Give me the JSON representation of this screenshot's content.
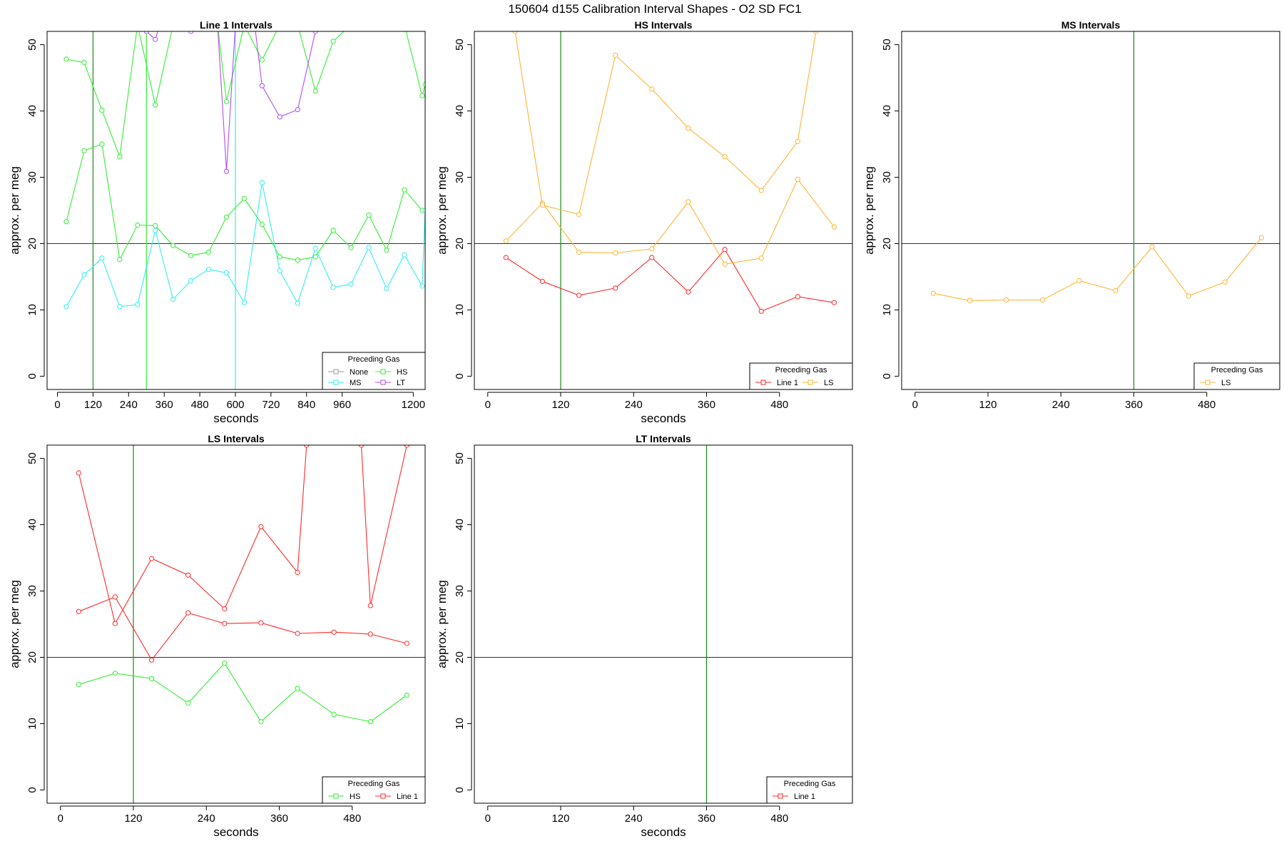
{
  "title": "150604   d155   Calibration Interval Shapes - O2 SD FC1",
  "colors": {
    "None": "#999999",
    "Line 1": "#ff2a2a",
    "HS": "#33ee33",
    "MS": "#33eeee",
    "LS": "#ffb533",
    "LT": "#b44dee",
    "reference_h": "#333333",
    "reference_v": "#1a8a1a"
  },
  "chart_data": [
    {
      "type": "line",
      "title": "Line 1 Intervals",
      "xlabel": "seconds",
      "ylabel": "approx. per meg",
      "xlim": [
        -35,
        1240
      ],
      "ylim": [
        -2,
        52
      ],
      "xticks": [
        0,
        120,
        240,
        360,
        480,
        600,
        720,
        840,
        960,
        1200
      ],
      "yticks": [
        0,
        10,
        20,
        30,
        40,
        50
      ],
      "hline": 20,
      "vlines": [
        {
          "x": 120,
          "color": "#1a8a1a"
        },
        {
          "x": 300,
          "color": "#33ee33"
        },
        {
          "x": 600,
          "color": "#33eeee"
        }
      ],
      "legend": {
        "title": "Preceding Gas",
        "position": "bottom-right",
        "columns": 2,
        "entries": [
          "None",
          "HS",
          "MS",
          "LT"
        ]
      },
      "series": [
        {
          "name": "HS",
          "x": [
            30,
            90,
            150,
            210,
            270,
            330,
            390
          ],
          "y": [
            47.8,
            47.3,
            40.1,
            33.1,
            53,
            40.9,
            53
          ]
        },
        {
          "name": "HS",
          "x": [
            30,
            90,
            150,
            210,
            270,
            330,
            390,
            450,
            510,
            570,
            630,
            690,
            750,
            810,
            870,
            930,
            990,
            1050,
            1110,
            1170,
            1230
          ],
          "y": [
            23.3,
            34,
            35,
            17.6,
            22.8,
            22.7,
            19.7,
            18.2,
            18.7,
            24,
            26.8,
            22.9,
            18,
            17.5,
            18,
            22,
            19.4,
            24.3,
            19,
            28.1,
            25
          ]
        },
        {
          "name": "HS",
          "x": [
            540,
            570,
            630,
            690,
            750,
            810,
            870,
            930,
            990,
            1050,
            1110,
            1170,
            1230,
            1240
          ],
          "y": [
            53,
            41.4,
            53,
            47.7,
            53,
            53,
            43,
            50.5,
            53,
            53,
            53,
            53,
            42.3,
            44
          ]
        },
        {
          "name": "MS",
          "x": [
            30,
            90,
            150,
            210,
            270,
            330,
            390,
            450,
            510,
            570,
            630,
            690,
            750,
            810,
            870,
            930,
            990,
            1050,
            1110,
            1170,
            1230,
            1240
          ],
          "y": [
            10.5,
            15.3,
            17.8,
            10.5,
            10.8,
            22,
            11.6,
            14.4,
            16.1,
            15.6,
            11.1,
            29.2,
            15.9,
            11,
            19.3,
            13.4,
            13.9,
            19.4,
            13.2,
            18.3,
            13.6,
            25
          ]
        },
        {
          "name": "LT",
          "x": [
            300,
            330,
            345
          ],
          "y": [
            52,
            50.8,
            53
          ]
        },
        {
          "name": "LT",
          "x": [
            450,
            470
          ],
          "y": [
            52,
            53
          ]
        },
        {
          "name": "LT",
          "x": [
            540,
            570,
            600
          ],
          "y": [
            53,
            30.9,
            53
          ]
        },
        {
          "name": "LT",
          "x": [
            665,
            690,
            750,
            810,
            870,
            890
          ],
          "y": [
            53,
            43.8,
            39.1,
            40.2,
            52,
            53
          ]
        }
      ]
    },
    {
      "type": "line",
      "title": "HS Intervals",
      "xlabel": "seconds",
      "ylabel": "approx. per meg",
      "xlim": [
        -22,
        600
      ],
      "ylim": [
        -2,
        52
      ],
      "xticks": [
        0,
        120,
        240,
        360,
        480
      ],
      "yticks": [
        0,
        10,
        20,
        30,
        40,
        50
      ],
      "hline": 20,
      "vlines": [
        {
          "x": 120,
          "color": "#1a8a1a"
        }
      ],
      "legend": {
        "title": "Preceding Gas",
        "position": "bottom-right",
        "columns": 2,
        "entries": [
          "Line 1",
          "LS"
        ]
      },
      "series": [
        {
          "name": "Line 1",
          "x": [
            30,
            90,
            150,
            210,
            270,
            330,
            390,
            450,
            510,
            570
          ],
          "y": [
            17.9,
            14.3,
            12.2,
            13.3,
            17.9,
            12.7,
            19.1,
            9.8,
            12,
            11.1
          ]
        },
        {
          "name": "LS",
          "x": [
            30,
            90,
            150,
            210,
            270,
            330,
            390,
            450,
            510,
            570
          ],
          "y": [
            20.4,
            26.1,
            18.7,
            18.6,
            19.2,
            26.3,
            16.9,
            17.8,
            29.7,
            22.5
          ]
        },
        {
          "name": "LS",
          "x": [
            45,
            90,
            150,
            210,
            270,
            330,
            390,
            450,
            510,
            540
          ],
          "y": [
            52,
            25.8,
            24.4,
            48.4,
            43.3,
            37.4,
            33.1,
            28,
            35.4,
            52
          ]
        }
      ]
    },
    {
      "type": "line",
      "title": "MS Intervals",
      "xlabel": "",
      "ylabel": "approx. per meg",
      "xlim": [
        -22,
        600
      ],
      "ylim": [
        -2,
        52
      ],
      "xticks": [
        0,
        120,
        240,
        360,
        480
      ],
      "yticks": [
        0,
        10,
        20,
        30,
        40,
        50
      ],
      "hline": 20,
      "vlines": [
        {
          "x": 360,
          "color": "#1a8a1a"
        }
      ],
      "legend": {
        "title": "Preceding Gas",
        "position": "bottom-right",
        "columns": 1,
        "entries": [
          "LS"
        ]
      },
      "series": [
        {
          "name": "LS",
          "x": [
            30,
            90,
            150,
            210,
            270,
            330,
            390,
            450,
            510,
            570
          ],
          "y": [
            12.5,
            11.4,
            11.5,
            11.5,
            14.4,
            12.9,
            19.5,
            12.1,
            14.2,
            20.9
          ]
        }
      ]
    },
    {
      "type": "line",
      "title": "LS Intervals",
      "xlabel": "seconds",
      "ylabel": "approx. per meg",
      "xlim": [
        -22,
        600
      ],
      "ylim": [
        -2,
        52
      ],
      "xticks": [
        0,
        120,
        240,
        360,
        480
      ],
      "yticks": [
        0,
        10,
        20,
        30,
        40,
        50
      ],
      "hline": 20,
      "vlines": [
        {
          "x": 120,
          "color": "#1a8a1a"
        }
      ],
      "legend": {
        "title": "Preceding Gas",
        "position": "bottom-right",
        "columns": 2,
        "entries": [
          "HS",
          "Line 1"
        ]
      },
      "series": [
        {
          "name": "HS",
          "x": [
            30,
            90,
            150,
            210,
            270,
            330,
            390,
            450,
            510,
            570
          ],
          "y": [
            15.9,
            17.6,
            16.8,
            13.1,
            19.1,
            10.3,
            15.3,
            11.4,
            10.3,
            14.3
          ]
        },
        {
          "name": "Line 1",
          "x": [
            30,
            90,
            150,
            210,
            270,
            330,
            390,
            450,
            510,
            570
          ],
          "y": [
            26.9,
            29.1,
            19.6,
            26.7,
            25.1,
            25.2,
            23.6,
            23.8,
            23.5,
            22.1
          ]
        },
        {
          "name": "Line 1",
          "x": [
            30,
            90,
            150,
            210,
            270,
            330,
            390,
            405
          ],
          "y": [
            47.8,
            25.1,
            34.9,
            32.4,
            27.3,
            39.7,
            32.8,
            52
          ]
        },
        {
          "name": "Line 1",
          "x": [
            495,
            510,
            570
          ],
          "y": [
            52,
            27.8,
            52
          ]
        }
      ]
    },
    {
      "type": "line",
      "title": "LT Intervals",
      "xlabel": "seconds",
      "ylabel": "approx. per meg",
      "xlim": [
        -22,
        600
      ],
      "ylim": [
        -2,
        52
      ],
      "xticks": [
        0,
        120,
        240,
        360,
        480
      ],
      "yticks": [
        0,
        10,
        20,
        30,
        40,
        50
      ],
      "hline": 20,
      "vlines": [
        {
          "x": 360,
          "color": "#1a8a1a"
        }
      ],
      "legend": {
        "title": "Preceding Gas",
        "position": "bottom-right",
        "columns": 1,
        "entries": [
          "Line 1"
        ]
      },
      "series": []
    }
  ]
}
